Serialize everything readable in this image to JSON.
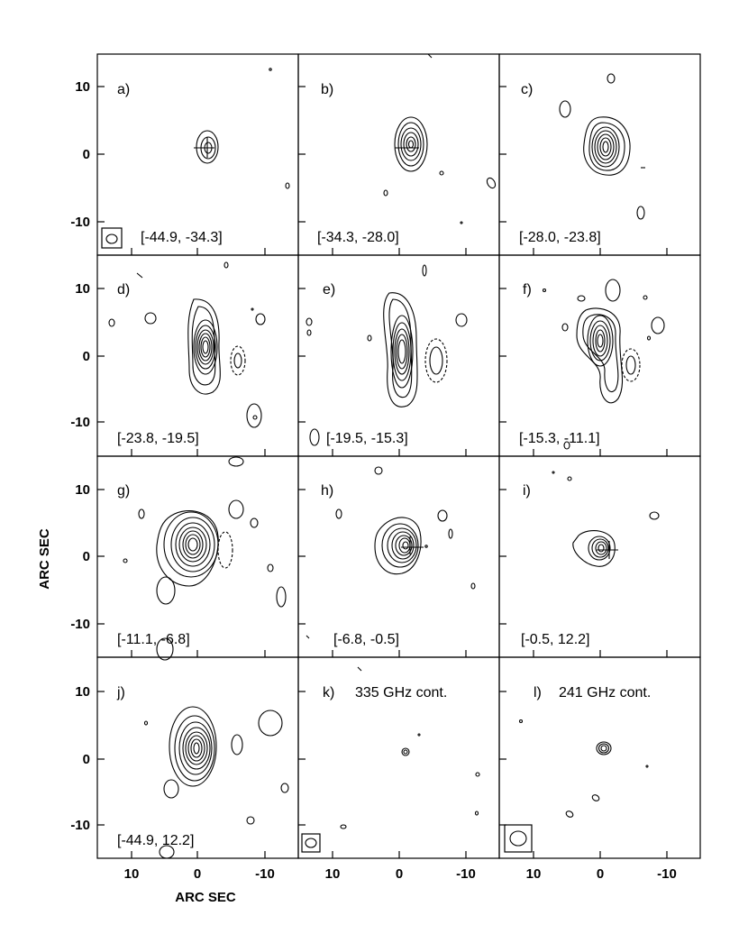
{
  "figure": {
    "y_axis_title": "ARC SEC",
    "x_axis_title": "ARC SEC",
    "y_ticks": [
      "10",
      "0",
      "-10"
    ],
    "x_ticks": [
      "10",
      "0",
      "-10"
    ]
  },
  "panels": [
    {
      "id": "a",
      "label": "a)",
      "range": "[-44.9, -34.3]",
      "cont": ""
    },
    {
      "id": "b",
      "label": "b)",
      "range": "[-34.3, -28.0]",
      "cont": ""
    },
    {
      "id": "c",
      "label": "c)",
      "range": "[-28.0, -23.8]",
      "cont": ""
    },
    {
      "id": "d",
      "label": "d)",
      "range": "[-23.8, -19.5]",
      "cont": ""
    },
    {
      "id": "e",
      "label": "e)",
      "range": "[-19.5, -15.3]",
      "cont": ""
    },
    {
      "id": "f",
      "label": "f)",
      "range": "[-15.3, -11.1]",
      "cont": ""
    },
    {
      "id": "g",
      "label": "g)",
      "range": "[-11.1, -6.8]",
      "cont": ""
    },
    {
      "id": "h",
      "label": "h)",
      "range": "[-6.8, -0.5]",
      "cont": ""
    },
    {
      "id": "i",
      "label": "i)",
      "range": "[-0.5, 12.2]",
      "cont": ""
    },
    {
      "id": "j",
      "label": "j)",
      "range": "[-44.9, 12.2]",
      "cont": ""
    },
    {
      "id": "k",
      "label": "k)",
      "range": "",
      "cont": "335 GHz cont."
    },
    {
      "id": "l",
      "label": "l)",
      "range": "",
      "cont": "241 GHz cont."
    }
  ]
}
